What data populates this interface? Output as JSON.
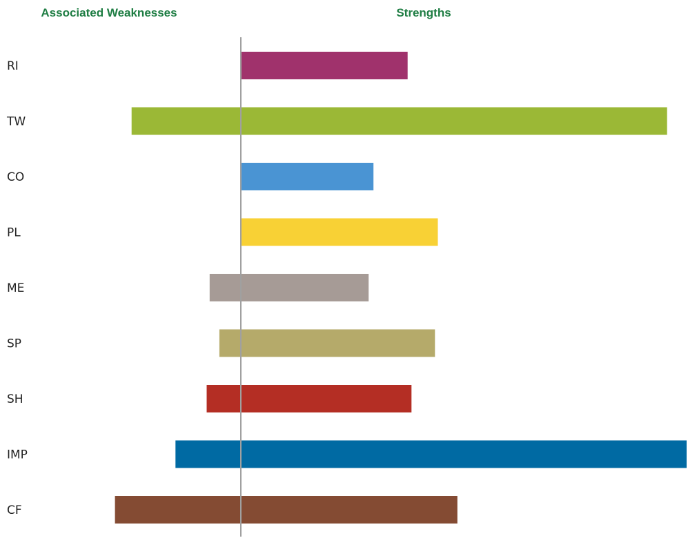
{
  "colors": {
    "header": "#1e7d43",
    "axis": "#a0a0a0",
    "label": "#222222"
  },
  "chart_data": {
    "type": "bar",
    "orientation": "horizontal-diverging",
    "left_header": "Associated Weaknesses",
    "right_header": "Strengths",
    "categories": [
      "RI",
      "TW",
      "CO",
      "PL",
      "ME",
      "SP",
      "SH",
      "IMP",
      "CF"
    ],
    "series": [
      {
        "name": "Associated Weaknesses",
        "values": [
          0,
          5.6,
          0,
          0,
          1.6,
          1.1,
          1.75,
          3.35,
          6.45
        ]
      },
      {
        "name": "Strengths",
        "values": [
          8.55,
          21.85,
          6.8,
          10.1,
          6.55,
          9.95,
          8.75,
          22.85,
          11.1
        ]
      }
    ],
    "bar_colors": [
      "#a0326c",
      "#9bb836",
      "#4a94d3",
      "#f8d135",
      "#a69b96",
      "#b5aa6a",
      "#b42e24",
      "#006aa3",
      "#844b33"
    ],
    "xlim": [
      -6.45,
      22.85
    ],
    "grid": false,
    "legend": "none"
  }
}
